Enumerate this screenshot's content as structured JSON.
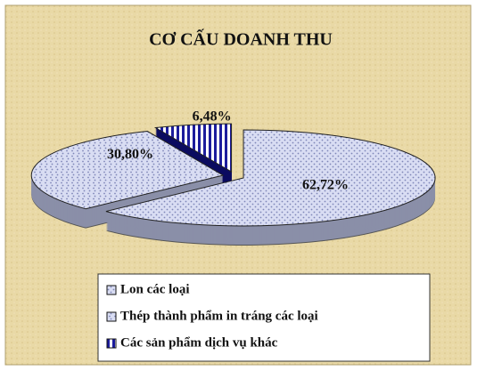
{
  "chart_data": {
    "type": "pie",
    "title": "CƠ CẤU DOANH THU",
    "categories": [
      "Lon các loại",
      "Thép thành phẩm in tráng các loại",
      "Các sản phẩm dịch vụ khác"
    ],
    "values": [
      62.72,
      30.8,
      6.48
    ],
    "value_labels": [
      "62,72%",
      "30,80%",
      "6,48%"
    ],
    "colors": [
      "#d9ddf3",
      "#d9ddf3",
      "#1c1c9c"
    ],
    "legend": "bottom"
  }
}
